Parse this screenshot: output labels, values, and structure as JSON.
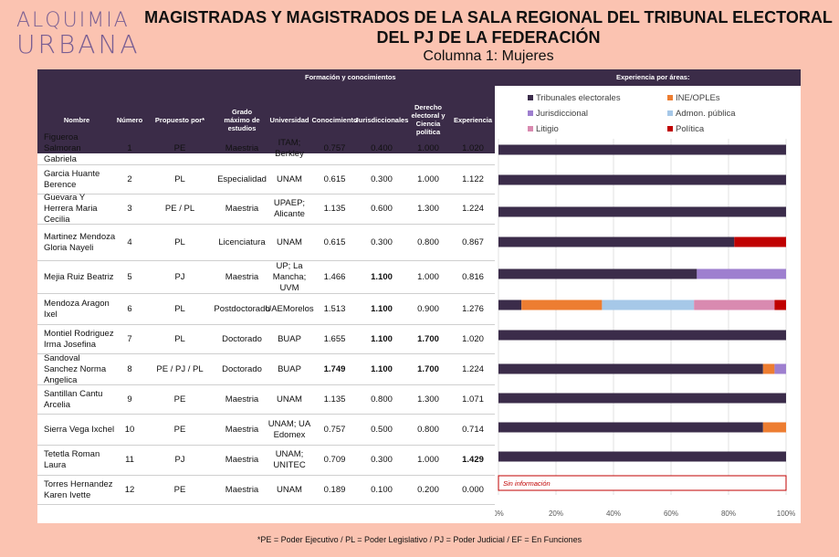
{
  "logo": {
    "line1": "ALQUIMIA",
    "line2": "URBANA"
  },
  "title": {
    "line1": "MAGISTRADAS Y MAGISTRADOS DE LA SALA REGIONAL DEL TRIBUNAL ELECTORAL",
    "line2": "DEL PJ DE LA FEDERACIÓN",
    "subtitle": "Columna 1: Mujeres"
  },
  "table": {
    "group_headers": {
      "formacion": "Formación y conocimientos",
      "experiencia": "Experiencia por áreas:"
    },
    "columns": [
      "Nombre",
      "Número",
      "Propuesto por*",
      "Grado máximo de estudios",
      "Universidad",
      "Conocimiento",
      "Jurisdiccionales",
      "Derecho electoral y Ciencia política",
      "Experiencia"
    ],
    "rows": [
      {
        "nombre": "Figueroa Salmoran Gabriela",
        "numero": "1",
        "propuesto": "PE",
        "grado": "Maestria",
        "universidad": "ITAM; Berkley",
        "conocimiento": "0.757",
        "jurisdiccionales": "0.400",
        "derecho": "1.000",
        "experiencia": "1.020"
      },
      {
        "nombre": "Garcia Huante Berence",
        "numero": "2",
        "propuesto": "PL",
        "grado": "Especialidad",
        "universidad": "UNAM",
        "conocimiento": "0.615",
        "jurisdiccionales": "0.300",
        "derecho": "1.000",
        "experiencia": "1.122"
      },
      {
        "nombre": "Guevara Y Herrera Maria Cecilia",
        "numero": "3",
        "propuesto": "PE / PL",
        "grado": "Maestria",
        "universidad": "UPAEP; Alicante",
        "conocimiento": "1.135",
        "jurisdiccionales": "0.600",
        "derecho": "1.300",
        "experiencia": "1.224"
      },
      {
        "nombre": "Martinez Mendoza Gloria Nayeli",
        "numero": "4",
        "propuesto": "PL",
        "grado": "Licenciatura",
        "universidad": "UNAM",
        "conocimiento": "0.615",
        "jurisdiccionales": "0.300",
        "derecho": "0.800",
        "experiencia": "0.867"
      },
      {
        "nombre": "Mejia Ruiz Beatriz",
        "numero": "5",
        "propuesto": "PJ",
        "grado": "Maestria",
        "universidad": "UP; La Mancha; UVM",
        "conocimiento": "1.466",
        "jurisdiccionales": "1.100",
        "derecho": "1.000",
        "experiencia": "0.816"
      },
      {
        "nombre": "Mendoza Aragon Ixel",
        "numero": "6",
        "propuesto": "PL",
        "grado": "Postdoctorado",
        "universidad": "UAEMorelos",
        "conocimiento": "1.513",
        "jurisdiccionales": "1.100",
        "derecho": "0.900",
        "experiencia": "1.276"
      },
      {
        "nombre": "Montiel Rodriguez Irma Josefina",
        "numero": "7",
        "propuesto": "PL",
        "grado": "Doctorado",
        "universidad": "BUAP",
        "conocimiento": "1.655",
        "jurisdiccionales": "1.100",
        "derecho": "1.700",
        "experiencia": "1.020"
      },
      {
        "nombre": "Sandoval Sanchez Norma Angelica",
        "numero": "8",
        "propuesto": "PE / PJ / PL",
        "grado": "Doctorado",
        "universidad": "BUAP",
        "conocimiento": "1.749",
        "jurisdiccionales": "1.100",
        "derecho": "1.700",
        "experiencia": "1.224"
      },
      {
        "nombre": "Santillan Cantu Arcelia",
        "numero": "9",
        "propuesto": "PE",
        "grado": "Maestria",
        "universidad": "UNAM",
        "conocimiento": "1.135",
        "jurisdiccionales": "0.800",
        "derecho": "1.300",
        "experiencia": "1.071"
      },
      {
        "nombre": "Sierra Vega Ixchel",
        "numero": "10",
        "propuesto": "PE",
        "grado": "Maestria",
        "universidad": "UNAM; UA Edomex",
        "conocimiento": "0.757",
        "jurisdiccionales": "0.500",
        "derecho": "0.800",
        "experiencia": "0.714"
      },
      {
        "nombre": "Tetetla Roman Laura",
        "numero": "11",
        "propuesto": "PJ",
        "grado": "Maestria",
        "universidad": "UNAM; UNITEC",
        "conocimiento": "0.709",
        "jurisdiccionales": "0.300",
        "derecho": "1.000",
        "experiencia": "1.429"
      },
      {
        "nombre": "Torres Hernandez Karen Ivette",
        "numero": "12",
        "propuesto": "PE",
        "grado": "Maestria",
        "universidad": "UNAM",
        "conocimiento": "0.189",
        "jurisdiccionales": "0.100",
        "derecho": "0.200",
        "experiencia": "0.000"
      }
    ]
  },
  "chart_data": {
    "type": "bar",
    "orientation": "horizontal",
    "stacked": "percent",
    "categories": [
      "1",
      "2",
      "3",
      "4",
      "5",
      "6",
      "7",
      "8",
      "9",
      "10",
      "11",
      "12"
    ],
    "series": [
      {
        "name": "Tribunales electorales",
        "color": "#3b2c4a",
        "values": [
          100,
          100,
          100,
          82,
          69,
          8,
          100,
          92,
          100,
          92,
          100,
          0
        ]
      },
      {
        "name": "INE/OPLEs",
        "color": "#ed7d31",
        "values": [
          0,
          0,
          0,
          0,
          0,
          28,
          0,
          4,
          0,
          8,
          0,
          0
        ]
      },
      {
        "name": "Jurisdiccional",
        "color": "#9e7fcf",
        "values": [
          0,
          0,
          0,
          0,
          31,
          0,
          0,
          4,
          0,
          0,
          0,
          0
        ]
      },
      {
        "name": "Admon. pública",
        "color": "#a6c8e8",
        "values": [
          0,
          0,
          0,
          0,
          0,
          32,
          0,
          0,
          0,
          0,
          0,
          0
        ]
      },
      {
        "name": "Litigio",
        "color": "#d98ab0",
        "values": [
          0,
          0,
          0,
          0,
          0,
          28,
          0,
          0,
          0,
          0,
          0,
          0
        ]
      },
      {
        "name": "Política",
        "color": "#c00000",
        "values": [
          0,
          0,
          0,
          18,
          0,
          4,
          0,
          0,
          0,
          0,
          0,
          0
        ]
      }
    ],
    "no_info_label": "Sin información",
    "no_info_row": 11,
    "xlim": [
      0,
      100
    ],
    "xticks": [
      "0%",
      "20%",
      "40%",
      "60%",
      "80%",
      "100%"
    ],
    "legend": "top",
    "grid": true
  },
  "footnote": "*PE = Poder Ejecutivo / PL = Poder Legislativo / PJ = Poder Judicial / EF = En Funciones"
}
